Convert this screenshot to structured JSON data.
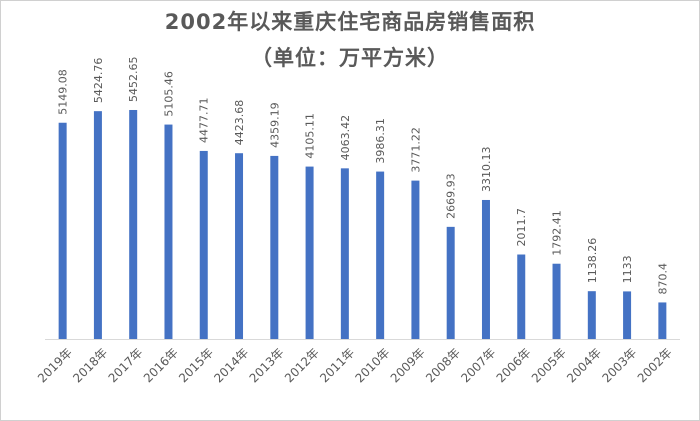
{
  "chart_data": {
    "type": "bar",
    "title": "2002年以来重庆住宅商品房销售面积",
    "subtitle": "（单位：万平方米）",
    "categories": [
      "2019年",
      "2018年",
      "2017年",
      "2016年",
      "2015年",
      "2014年",
      "2013年",
      "2012年",
      "2011年",
      "2010年",
      "2009年",
      "2008年",
      "2007年",
      "2006年",
      "2005年",
      "2004年",
      "2003年",
      "2002年"
    ],
    "values": [
      5149.08,
      5424.76,
      5452.65,
      5105.46,
      4477.71,
      4423.68,
      4359.19,
      4105.11,
      4063.42,
      3986.31,
      3771.22,
      2669.93,
      3310.13,
      2011.7,
      1792.41,
      1138.26,
      1133,
      870.4
    ],
    "value_labels": [
      "5149.08",
      "5424.76",
      "5452.65",
      "5105.46",
      "4477.71",
      "4423.68",
      "4359.19",
      "4105.11",
      "4063.42",
      "3986.31",
      "3771.22",
      "2669.93",
      "3310.13",
      "2011.7",
      "1792.41",
      "1138.26",
      "1133",
      "870.4"
    ],
    "bar_color": "#4472C4",
    "ylim": [
      0,
      6000
    ],
    "grid": false,
    "legend": "none"
  }
}
